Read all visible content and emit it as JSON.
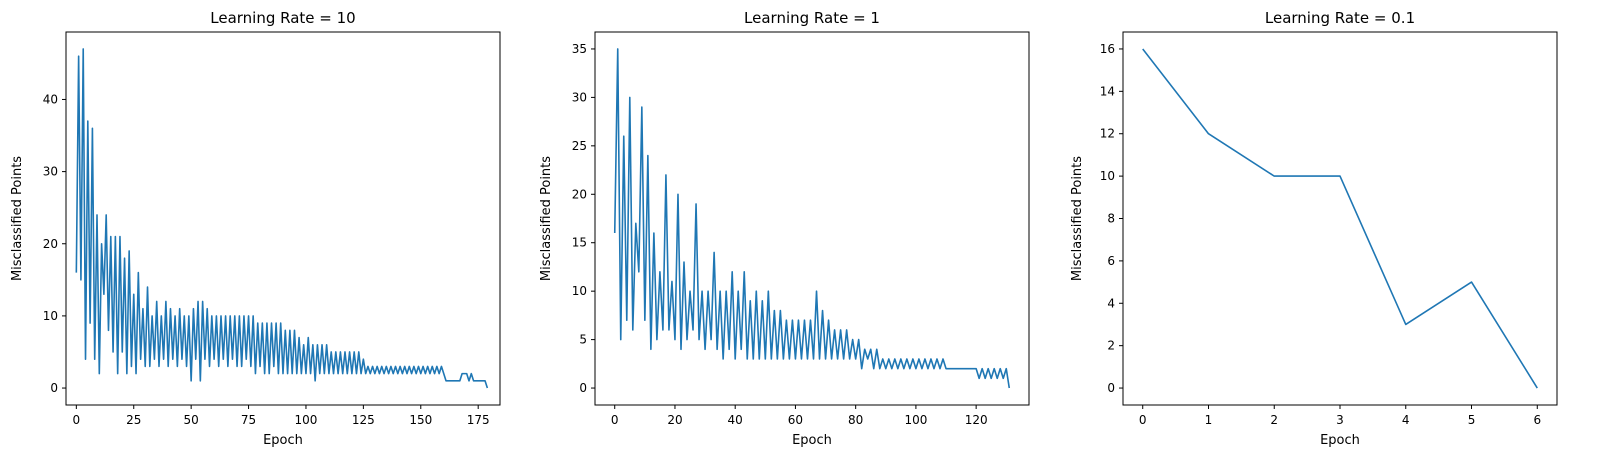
{
  "chart_data": [
    {
      "type": "line",
      "title": "Learning Rate = 10",
      "xlabel": "Epoch",
      "ylabel": "Misclassified Points",
      "xlim": [
        -4.5,
        184.5
      ],
      "ylim": [
        -2.35,
        49.35
      ],
      "xticks": [
        0,
        25,
        50,
        75,
        100,
        125,
        150,
        175
      ],
      "yticks": [
        0,
        10,
        20,
        30,
        40
      ],
      "color": "#1f77b4",
      "grid": false,
      "x": [
        0,
        1,
        2,
        3,
        4,
        5,
        6,
        7,
        8,
        9,
        10,
        11,
        12,
        13,
        14,
        15,
        16,
        17,
        18,
        19,
        20,
        21,
        22,
        23,
        24,
        25,
        26,
        27,
        28,
        29,
        30,
        31,
        32,
        33,
        34,
        35,
        36,
        37,
        38,
        39,
        40,
        41,
        42,
        43,
        44,
        45,
        46,
        47,
        48,
        49,
        50,
        51,
        52,
        53,
        54,
        55,
        56,
        57,
        58,
        59,
        60,
        61,
        62,
        63,
        64,
        65,
        66,
        67,
        68,
        69,
        70,
        71,
        72,
        73,
        74,
        75,
        76,
        77,
        78,
        79,
        80,
        81,
        82,
        83,
        84,
        85,
        86,
        87,
        88,
        89,
        90,
        91,
        92,
        93,
        94,
        95,
        96,
        97,
        98,
        99,
        100,
        101,
        102,
        103,
        104,
        105,
        106,
        107,
        108,
        109,
        110,
        111,
        112,
        113,
        114,
        115,
        116,
        117,
        118,
        119,
        120,
        121,
        122,
        123,
        124,
        125,
        126,
        127,
        128,
        129,
        130,
        131,
        132,
        133,
        134,
        135,
        136,
        137,
        138,
        139,
        140,
        141,
        142,
        143,
        144,
        145,
        146,
        147,
        148,
        149,
        150,
        151,
        152,
        153,
        154,
        155,
        156,
        157,
        158,
        159,
        160,
        161,
        162,
        163,
        164,
        165,
        166,
        167,
        168,
        169,
        170,
        171,
        172,
        173,
        174,
        175,
        176,
        177,
        178,
        179
      ],
      "y": [
        16,
        46,
        15,
        47,
        4,
        37,
        9,
        36,
        4,
        24,
        2,
        20,
        13,
        24,
        8,
        21,
        5,
        21,
        2,
        21,
        5,
        18,
        2,
        19,
        3,
        13,
        2,
        16,
        4,
        11,
        3,
        14,
        3,
        10,
        4,
        12,
        3,
        10,
        4,
        12,
        3,
        11,
        4,
        10,
        3,
        11,
        4,
        10,
        3,
        10,
        1,
        11,
        4,
        12,
        1,
        12,
        4,
        11,
        3,
        10,
        4,
        10,
        3,
        10,
        4,
        10,
        3,
        10,
        4,
        10,
        3,
        10,
        3,
        10,
        4,
        10,
        3,
        10,
        2,
        9,
        3,
        9,
        2,
        9,
        2,
        9,
        3,
        9,
        2,
        9,
        2,
        8,
        2,
        8,
        2,
        8,
        2,
        7,
        2,
        6,
        2,
        7,
        2,
        6,
        1,
        6,
        2,
        6,
        2,
        6,
        2,
        5,
        2,
        5,
        2,
        5,
        2,
        5,
        2,
        5,
        2,
        5,
        2,
        5,
        2,
        4,
        2,
        3,
        2,
        3,
        2,
        3,
        2,
        3,
        2,
        3,
        2,
        3,
        2,
        3,
        2,
        3,
        2,
        3,
        2,
        3,
        2,
        3,
        2,
        3,
        2,
        3,
        2,
        3,
        2,
        3,
        2,
        3,
        2,
        3,
        2,
        1,
        1,
        1,
        1,
        1,
        1,
        1,
        2,
        2,
        2,
        1,
        2,
        1,
        1,
        1,
        1,
        1,
        1,
        0
      ]
    },
    {
      "type": "line",
      "title": "Learning Rate = 1",
      "xlabel": "Epoch",
      "ylabel": "Misclassified Points",
      "xlim": [
        -6.55,
        137.55
      ],
      "ylim": [
        -1.75,
        36.75
      ],
      "xticks": [
        0,
        20,
        40,
        60,
        80,
        100,
        120
      ],
      "yticks": [
        0,
        5,
        10,
        15,
        20,
        25,
        30,
        35
      ],
      "color": "#1f77b4",
      "grid": false,
      "x": [
        0,
        1,
        2,
        3,
        4,
        5,
        6,
        7,
        8,
        9,
        10,
        11,
        12,
        13,
        14,
        15,
        16,
        17,
        18,
        19,
        20,
        21,
        22,
        23,
        24,
        25,
        26,
        27,
        28,
        29,
        30,
        31,
        32,
        33,
        34,
        35,
        36,
        37,
        38,
        39,
        40,
        41,
        42,
        43,
        44,
        45,
        46,
        47,
        48,
        49,
        50,
        51,
        52,
        53,
        54,
        55,
        56,
        57,
        58,
        59,
        60,
        61,
        62,
        63,
        64,
        65,
        66,
        67,
        68,
        69,
        70,
        71,
        72,
        73,
        74,
        75,
        76,
        77,
        78,
        79,
        80,
        81,
        82,
        83,
        84,
        85,
        86,
        87,
        88,
        89,
        90,
        91,
        92,
        93,
        94,
        95,
        96,
        97,
        98,
        99,
        100,
        101,
        102,
        103,
        104,
        105,
        106,
        107,
        108,
        109,
        110,
        111,
        112,
        113,
        114,
        115,
        116,
        117,
        118,
        119,
        120,
        121,
        122,
        123,
        124,
        125,
        126,
        127,
        128,
        129,
        130,
        131
      ],
      "y": [
        16,
        35,
        5,
        26,
        7,
        30,
        6,
        17,
        12,
        29,
        7,
        24,
        4,
        16,
        5,
        12,
        6,
        22,
        6,
        11,
        5,
        20,
        4,
        13,
        5,
        10,
        6,
        19,
        5,
        10,
        4,
        10,
        5,
        14,
        4,
        10,
        3,
        10,
        4,
        12,
        3,
        10,
        4,
        12,
        3,
        9,
        3,
        10,
        3,
        9,
        3,
        10,
        3,
        8,
        3,
        8,
        3,
        7,
        3,
        7,
        3,
        7,
        3,
        7,
        3,
        7,
        3,
        10,
        3,
        8,
        3,
        7,
        3,
        6,
        3,
        6,
        3,
        6,
        3,
        5,
        3,
        5,
        2,
        4,
        3,
        4,
        2,
        4,
        2,
        3,
        2,
        3,
        2,
        3,
        2,
        3,
        2,
        3,
        2,
        3,
        2,
        3,
        2,
        3,
        2,
        3,
        2,
        3,
        2,
        3,
        2,
        2,
        2,
        2,
        2,
        2,
        2,
        2,
        2,
        2,
        2,
        1,
        2,
        1,
        2,
        1,
        2,
        1,
        2,
        1,
        2,
        0
      ]
    },
    {
      "type": "line",
      "title": "Learning Rate = 0.1",
      "xlabel": "Epoch",
      "ylabel": "Misclassified Points",
      "xlim": [
        -0.3,
        6.3
      ],
      "ylim": [
        -0.8,
        16.8
      ],
      "xticks": [
        0,
        1,
        2,
        3,
        4,
        5,
        6
      ],
      "yticks": [
        0,
        2,
        4,
        6,
        8,
        10,
        12,
        14,
        16
      ],
      "color": "#1f77b4",
      "grid": false,
      "x": [
        0,
        1,
        2,
        3,
        4,
        5,
        6
      ],
      "y": [
        16,
        12,
        10,
        10,
        3,
        5,
        0
      ]
    }
  ]
}
